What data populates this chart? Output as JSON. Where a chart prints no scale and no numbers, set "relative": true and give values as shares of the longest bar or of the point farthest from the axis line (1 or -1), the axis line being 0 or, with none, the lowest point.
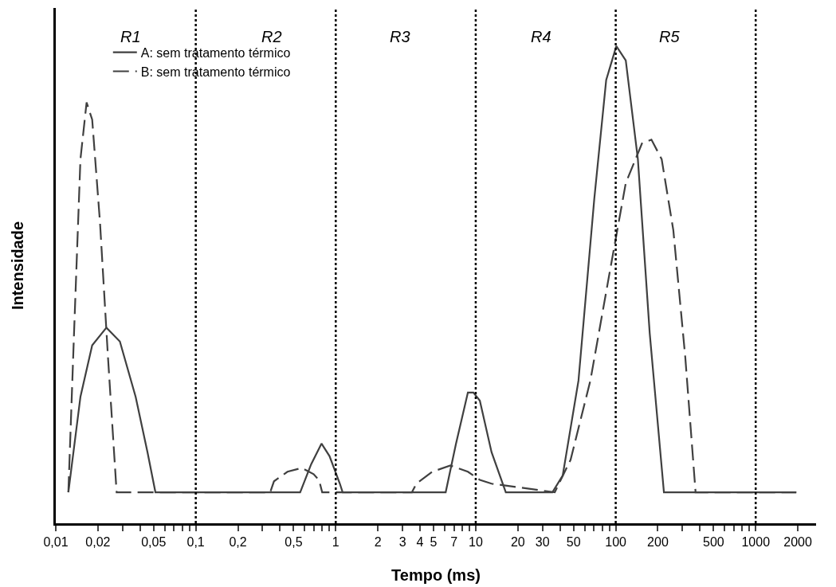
{
  "chart_data": {
    "type": "line",
    "relative": true,
    "xlabel": "Tempo (ms)",
    "ylabel": "Intensidade",
    "log": "x",
    "xlim": [
      0.01,
      2700
    ],
    "ylim": [
      0,
      1.08
    ],
    "xticks": [
      {
        "value": 0.01,
        "label": "0,01"
      },
      {
        "value": 0.02,
        "label": "0,02"
      },
      {
        "value": 0.03,
        "label": null
      },
      {
        "value": 0.04,
        "label": null
      },
      {
        "value": 0.05,
        "label": "0,05"
      },
      {
        "value": 0.06,
        "label": null
      },
      {
        "value": 0.07,
        "label": null
      },
      {
        "value": 0.08,
        "label": null
      },
      {
        "value": 0.09,
        "label": null
      },
      {
        "value": 0.1,
        "label": "0,1"
      },
      {
        "value": 0.2,
        "label": "0,2"
      },
      {
        "value": 0.3,
        "label": null
      },
      {
        "value": 0.4,
        "label": null
      },
      {
        "value": 0.5,
        "label": "0,5"
      },
      {
        "value": 0.6,
        "label": null
      },
      {
        "value": 0.7,
        "label": null
      },
      {
        "value": 0.8,
        "label": null
      },
      {
        "value": 0.9,
        "label": null
      },
      1,
      2,
      3,
      4,
      5,
      {
        "value": 6,
        "label": null
      },
      7,
      {
        "value": 8,
        "label": null
      },
      {
        "value": 9,
        "label": null
      },
      10,
      20,
      30,
      {
        "value": 40,
        "label": null
      },
      50,
      {
        "value": 60,
        "label": null
      },
      {
        "value": 70,
        "label": null
      },
      {
        "value": 80,
        "label": null
      },
      {
        "value": 90,
        "label": null
      },
      100,
      200,
      {
        "value": 300,
        "label": null
      },
      {
        "value": 400,
        "label": null
      },
      500,
      {
        "value": 600,
        "label": null
      },
      {
        "value": 700,
        "label": null
      },
      {
        "value": 800,
        "label": null
      },
      {
        "value": 900,
        "label": null
      },
      1000,
      2000
    ],
    "grid": false,
    "legend": "top left",
    "marker": "none",
    "series": [
      {
        "name": "A: sem tratamento térmico",
        "color": "#404040",
        "line_style": "solid",
        "x": [
          0.0123,
          0.015,
          0.0182,
          0.023,
          0.0287,
          0.0372,
          0.0452,
          0.0515,
          0.557,
          0.668,
          0.791,
          0.902,
          1.07,
          1.12,
          6.1,
          7.22,
          8.79,
          9.62,
          10.7,
          12.97,
          16.4,
          35.3,
          41.8,
          54.2,
          70.3,
          85.5,
          101,
          118,
          144,
          175,
          221,
          1950
        ],
        "values": [
          0.065,
          0.265,
          0.373,
          0.41,
          0.381,
          0.265,
          0.149,
          0.065,
          0.065,
          0.124,
          0.167,
          0.141,
          0.083,
          0.065,
          0.065,
          0.166,
          0.274,
          0.274,
          0.257,
          0.149,
          0.065,
          0.065,
          0.1,
          0.299,
          0.68,
          0.929,
          1,
          0.97,
          0.763,
          0.398,
          0.065,
          0.065
        ]
      },
      {
        "name": "B: sem tratamento térmico",
        "color": "#404040",
        "line_style": "dashed",
        "x": [
          0.0123,
          0.0135,
          0.015,
          0.0166,
          0.0182,
          0.0207,
          0.0236,
          0.0272,
          0.34,
          0.362,
          0.452,
          0.571,
          0.695,
          0.761,
          0.8,
          3.5,
          3.77,
          4.89,
          6.59,
          8.79,
          10.7,
          12.97,
          36.7,
          47.6,
          65.9,
          91.2,
          118,
          154,
          180,
          213,
          258,
          314,
          372,
          1950
        ],
        "values": [
          0.065,
          0.398,
          0.763,
          0.882,
          0.846,
          0.63,
          0.348,
          0.065,
          0.065,
          0.088,
          0.108,
          0.116,
          0.103,
          0.09,
          0.065,
          0.065,
          0.083,
          0.108,
          0.121,
          0.108,
          0.091,
          0.083,
          0.065,
          0.133,
          0.299,
          0.531,
          0.713,
          0.796,
          0.804,
          0.763,
          0.614,
          0.348,
          0.065,
          0.065
        ]
      }
    ],
    "ref_lines": [
      {
        "axis": "x",
        "value": 0.1,
        "color": "#000000",
        "line_style": "dotted"
      },
      {
        "axis": "x",
        "value": 1,
        "color": "#000000",
        "line_style": "dotted"
      },
      {
        "axis": "x",
        "value": 10,
        "color": "#000000",
        "line_style": "dotted"
      },
      {
        "axis": "x",
        "value": 100,
        "color": "#000000",
        "line_style": "dotted"
      },
      {
        "axis": "x",
        "value": 1000,
        "color": "#000000",
        "line_style": "dotted"
      }
    ],
    "annotations": [
      "R1",
      "R2",
      "R3",
      "R4",
      "R5"
    ]
  }
}
